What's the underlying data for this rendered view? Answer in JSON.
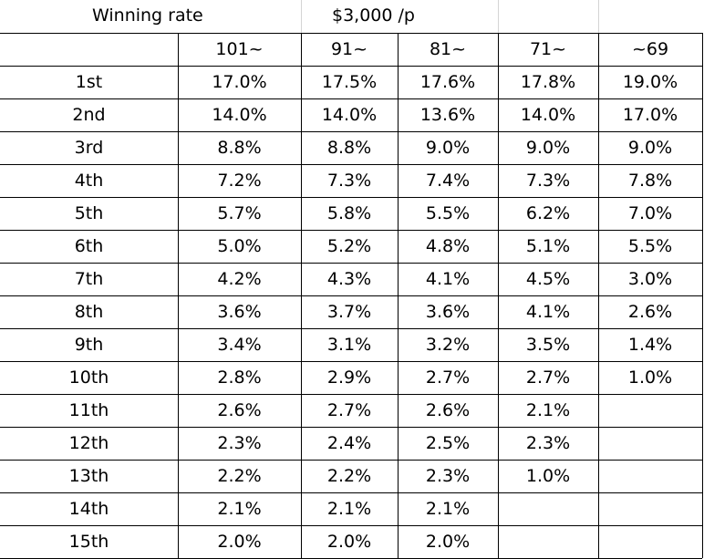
{
  "sheet": {
    "title": "Winning rate",
    "subtitle": "$3,000 /p",
    "headers": [
      "101~",
      "91~",
      "81~",
      "71~",
      "~69"
    ],
    "rows": [
      {
        "label": "1st",
        "values": [
          "17.0%",
          "17.5%",
          "17.6%",
          "17.8%",
          "19.0%"
        ]
      },
      {
        "label": "2nd",
        "values": [
          "14.0%",
          "14.0%",
          "13.6%",
          "14.0%",
          "17.0%"
        ]
      },
      {
        "label": "3rd",
        "values": [
          "8.8%",
          "8.8%",
          "9.0%",
          "9.0%",
          "9.0%"
        ]
      },
      {
        "label": "4th",
        "values": [
          "7.2%",
          "7.3%",
          "7.4%",
          "7.3%",
          "7.8%"
        ]
      },
      {
        "label": "5th",
        "values": [
          "5.7%",
          "5.8%",
          "5.5%",
          "6.2%",
          "7.0%"
        ]
      },
      {
        "label": "6th",
        "values": [
          "5.0%",
          "5.2%",
          "4.8%",
          "5.1%",
          "5.5%"
        ]
      },
      {
        "label": "7th",
        "values": [
          "4.2%",
          "4.3%",
          "4.1%",
          "4.5%",
          "3.0%"
        ]
      },
      {
        "label": "8th",
        "values": [
          "3.6%",
          "3.7%",
          "3.6%",
          "4.1%",
          "2.6%"
        ]
      },
      {
        "label": "9th",
        "values": [
          "3.4%",
          "3.1%",
          "3.2%",
          "3.5%",
          "1.4%"
        ]
      },
      {
        "label": "10th",
        "values": [
          "2.8%",
          "2.9%",
          "2.7%",
          "2.7%",
          "1.0%"
        ]
      },
      {
        "label": "11th",
        "values": [
          "2.6%",
          "2.7%",
          "2.6%",
          "2.1%",
          ""
        ]
      },
      {
        "label": "12th",
        "values": [
          "2.3%",
          "2.4%",
          "2.5%",
          "2.3%",
          ""
        ]
      },
      {
        "label": "13th",
        "values": [
          "2.2%",
          "2.2%",
          "2.3%",
          "1.0%",
          ""
        ]
      },
      {
        "label": "14th",
        "values": [
          "2.1%",
          "2.1%",
          "2.1%",
          "",
          ""
        ]
      },
      {
        "label": "15th",
        "values": [
          "2.0%",
          "2.0%",
          "2.0%",
          "",
          ""
        ]
      }
    ]
  }
}
